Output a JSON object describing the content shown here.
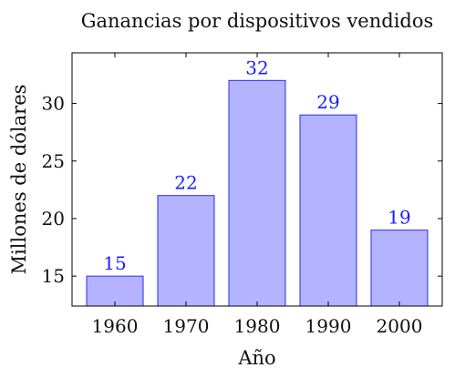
{
  "chart_data": {
    "type": "bar",
    "title": "Ganancias por dispositivos vendidos",
    "xlabel": "Año",
    "ylabel": "Millones de dólares",
    "categories": [
      "1960",
      "1970",
      "1980",
      "1990",
      "2000"
    ],
    "values": [
      15,
      22,
      32,
      29,
      19
    ],
    "data_labels": [
      "15",
      "22",
      "32",
      "29",
      "19"
    ],
    "ylim": [
      12.4,
      34.4
    ],
    "yticks": [
      15,
      20,
      25,
      30
    ],
    "ytick_labels": [
      "15",
      "20",
      "25",
      "30"
    ],
    "grid": false,
    "legend": "none",
    "colors": {
      "bar_fill": "#b3b3ff",
      "bar_stroke": "#2a2aff",
      "data_label": "#1a1aff",
      "axis": "#000000",
      "text": "#111111"
    }
  }
}
